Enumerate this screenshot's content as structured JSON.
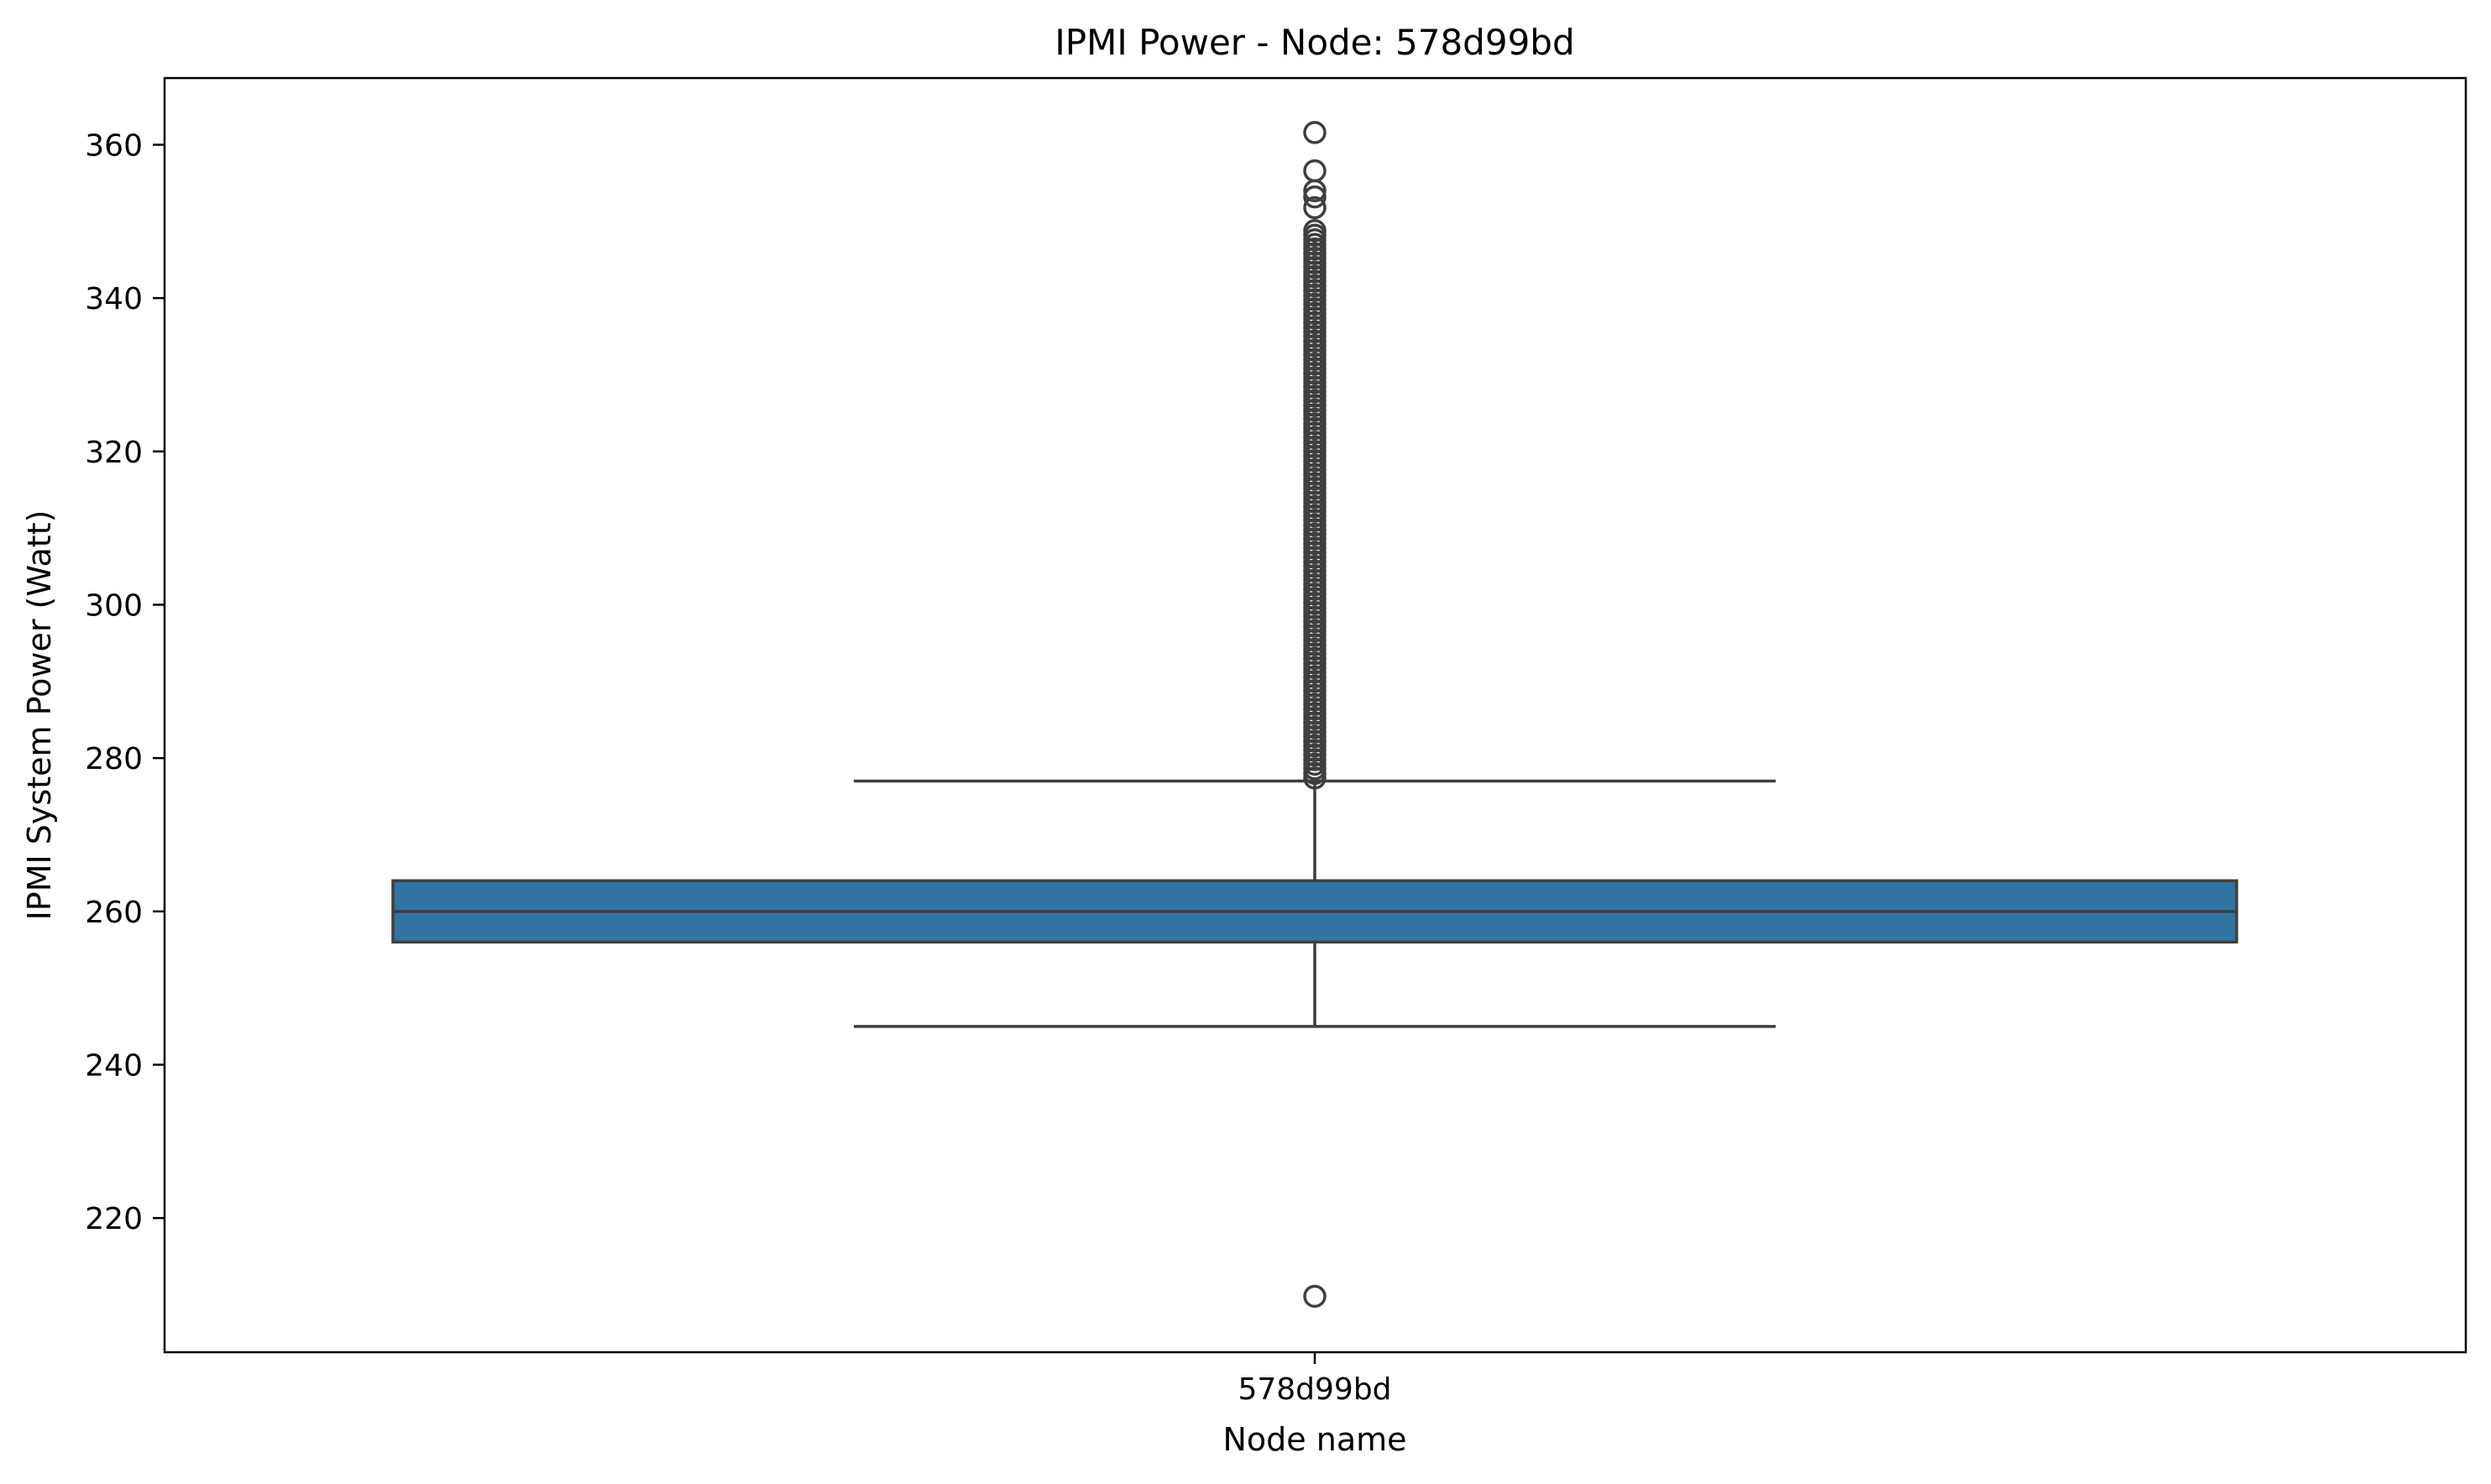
{
  "chart_data": {
    "type": "box",
    "title": "IPMI Power - Node: 578d99bd",
    "xlabel": "Node name",
    "ylabel": "IPMI System Power (Watt)",
    "ylim": [
      202.5,
      368.7
    ],
    "yticks": [
      220,
      240,
      260,
      280,
      300,
      320,
      340,
      360
    ],
    "categories": [
      "578d99bd"
    ],
    "box": {
      "category": "578d99bd",
      "whisker_low": 245,
      "q1": 256,
      "median": 260,
      "q3": 264,
      "whisker_high": 277,
      "color": "#3274a1",
      "edge_color": "#3f3f3f"
    },
    "outliers": [
      209.8,
      277.4,
      278.0,
      278.6,
      279.2,
      279.8,
      280.4,
      281.0,
      281.6,
      282.2,
      282.8,
      283.4,
      284.0,
      284.6,
      285.2,
      285.8,
      286.4,
      287.0,
      287.6,
      288.2,
      288.8,
      289.4,
      290.0,
      290.6,
      291.2,
      291.8,
      292.4,
      293.0,
      293.6,
      294.2,
      294.8,
      295.4,
      296.0,
      296.6,
      297.2,
      297.8,
      298.4,
      299.0,
      299.6,
      300.2,
      300.8,
      301.4,
      302.0,
      302.6,
      303.2,
      303.8,
      304.4,
      305.0,
      305.6,
      306.2,
      306.8,
      307.4,
      308.0,
      308.6,
      309.2,
      309.8,
      310.4,
      311.0,
      311.6,
      312.2,
      312.8,
      313.4,
      314.0,
      314.6,
      315.2,
      315.8,
      316.4,
      317.0,
      317.6,
      318.2,
      318.8,
      319.4,
      320.0,
      320.6,
      321.2,
      321.8,
      322.4,
      323.0,
      323.6,
      324.2,
      324.8,
      325.4,
      326.0,
      326.6,
      327.2,
      327.8,
      328.4,
      329.0,
      329.6,
      330.2,
      330.8,
      331.4,
      332.0,
      332.6,
      333.2,
      333.8,
      334.4,
      335.0,
      335.6,
      336.2,
      336.8,
      337.4,
      338.0,
      338.6,
      339.2,
      339.8,
      340.4,
      341.0,
      341.6,
      342.2,
      342.8,
      343.4,
      344.0,
      344.6,
      345.2,
      345.8,
      346.4,
      347.0,
      347.6,
      348.2,
      348.8,
      351.8,
      353.2,
      354.0,
      356.6,
      361.6
    ],
    "grid": false,
    "legend": "none"
  }
}
